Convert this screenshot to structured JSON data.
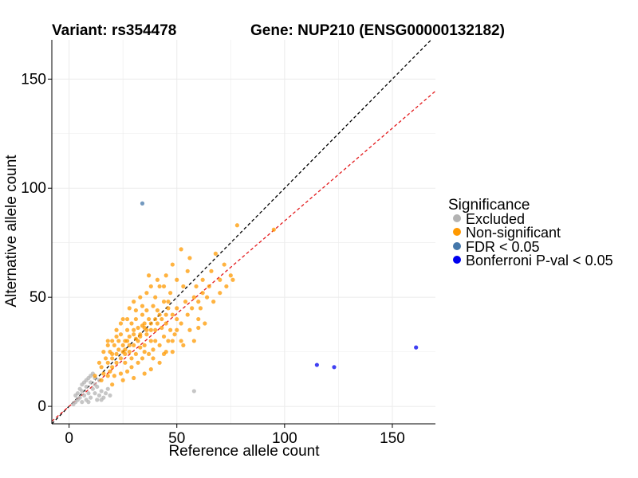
{
  "chart_data": {
    "type": "scatter",
    "title_left": "Variant: rs354478",
    "title_right": "Gene: NUP210 (ENSG00000132182)",
    "xlabel": "Reference allele count",
    "ylabel": "Alternative allele count",
    "xlim": [
      -8,
      170
    ],
    "ylim": [
      -8,
      168
    ],
    "xticks": [
      0,
      50,
      100,
      150
    ],
    "yticks": [
      0,
      50,
      100,
      150
    ],
    "grid": true,
    "reference_lines": [
      {
        "name": "identity",
        "slope": 1,
        "intercept": 0,
        "color": "#000000",
        "style": "dashed"
      },
      {
        "name": "fit",
        "slope": 0.85,
        "intercept": 0,
        "color": "#e31a1c",
        "style": "dashed"
      }
    ],
    "legend": {
      "title": "Significance",
      "position": "right",
      "entries": [
        {
          "label": "Excluded",
          "color": "#b3b3b3"
        },
        {
          "label": "Non-significant",
          "color": "#ff9900"
        },
        {
          "label": "FDR < 0.05",
          "color": "#4477aa"
        },
        {
          "label": "Bonferroni P-val < 0.05",
          "color": "#0000ee"
        }
      ]
    },
    "series": [
      {
        "name": "Excluded",
        "color": "#b3b3b3",
        "points": [
          [
            2,
            1
          ],
          [
            3,
            2
          ],
          [
            4,
            3
          ],
          [
            3,
            5
          ],
          [
            5,
            4
          ],
          [
            6,
            2
          ],
          [
            6,
            7
          ],
          [
            7,
            5
          ],
          [
            8,
            3
          ],
          [
            8,
            9
          ],
          [
            9,
            6
          ],
          [
            10,
            4
          ],
          [
            10,
            11
          ],
          [
            11,
            8
          ],
          [
            12,
            6
          ],
          [
            12,
            13
          ],
          [
            13,
            9
          ],
          [
            14,
            5
          ],
          [
            14,
            12
          ],
          [
            15,
            7
          ],
          [
            5,
            8
          ],
          [
            7,
            11
          ],
          [
            9,
            13
          ],
          [
            11,
            15
          ],
          [
            13,
            3
          ],
          [
            16,
            4
          ],
          [
            17,
            6
          ],
          [
            18,
            8
          ],
          [
            4,
            6
          ],
          [
            6,
            10
          ],
          [
            8,
            12
          ],
          [
            10,
            14
          ],
          [
            12,
            10
          ],
          [
            9,
            2
          ],
          [
            15,
            3
          ],
          [
            19,
            5
          ],
          [
            58,
            7
          ]
        ]
      },
      {
        "name": "Non-significant",
        "color": "#ff9900",
        "points": [
          [
            95,
            81
          ],
          [
            78,
            83
          ],
          [
            72,
            65
          ],
          [
            70,
            58
          ],
          [
            75,
            60
          ],
          [
            68,
            70
          ],
          [
            65,
            55
          ],
          [
            66,
            62
          ],
          [
            60,
            48
          ],
          [
            62,
            52
          ],
          [
            58,
            50
          ],
          [
            55,
            62
          ],
          [
            52,
            72
          ],
          [
            56,
            68
          ],
          [
            50,
            58
          ],
          [
            48,
            65
          ],
          [
            45,
            60
          ],
          [
            60,
            40
          ],
          [
            63,
            38
          ],
          [
            55,
            42
          ],
          [
            50,
            35
          ],
          [
            58,
            30
          ],
          [
            53,
            28
          ],
          [
            48,
            30
          ],
          [
            45,
            25
          ],
          [
            42,
            20
          ],
          [
            38,
            17
          ],
          [
            35,
            15
          ],
          [
            30,
            13
          ],
          [
            25,
            12
          ],
          [
            20,
            10
          ],
          [
            18,
            14
          ],
          [
            15,
            12
          ],
          [
            12,
            14
          ],
          [
            15,
            18
          ],
          [
            14,
            20
          ],
          [
            16,
            25
          ],
          [
            18,
            28
          ],
          [
            20,
            30
          ],
          [
            22,
            35
          ],
          [
            25,
            40
          ],
          [
            28,
            45
          ],
          [
            30,
            48
          ],
          [
            33,
            50
          ],
          [
            36,
            52
          ],
          [
            38,
            55
          ],
          [
            40,
            50
          ],
          [
            42,
            55
          ],
          [
            44,
            48
          ],
          [
            46,
            45
          ],
          [
            48,
            42
          ],
          [
            50,
            40
          ],
          [
            52,
            38
          ],
          [
            40,
            30
          ],
          [
            38,
            35
          ],
          [
            35,
            38
          ],
          [
            33,
            32
          ],
          [
            30,
            28
          ],
          [
            28,
            25
          ],
          [
            26,
            30
          ],
          [
            24,
            22
          ],
          [
            22,
            20
          ],
          [
            20,
            18
          ],
          [
            18,
            20
          ],
          [
            16,
            15
          ],
          [
            25,
            28
          ],
          [
            27,
            35
          ],
          [
            29,
            38
          ],
          [
            31,
            40
          ],
          [
            34,
            42
          ],
          [
            36,
            44
          ],
          [
            39,
            46
          ],
          [
            41,
            44
          ],
          [
            43,
            40
          ],
          [
            45,
            38
          ],
          [
            47,
            35
          ],
          [
            44,
            32
          ],
          [
            42,
            28
          ],
          [
            39,
            26
          ],
          [
            37,
            24
          ],
          [
            34,
            22
          ],
          [
            32,
            20
          ],
          [
            29,
            18
          ],
          [
            27,
            16
          ],
          [
            24,
            15
          ],
          [
            21,
            14
          ],
          [
            19,
            16
          ],
          [
            17,
            22
          ],
          [
            20,
            24
          ],
          [
            23,
            26
          ],
          [
            26,
            20
          ],
          [
            31,
            24
          ],
          [
            35,
            28
          ],
          [
            40,
            35
          ],
          [
            43,
            36
          ],
          [
            46,
            30
          ],
          [
            49,
            33
          ],
          [
            41,
            38
          ],
          [
            37,
            40
          ],
          [
            32,
            36
          ],
          [
            28,
            32
          ],
          [
            24,
            33
          ],
          [
            21,
            28
          ],
          [
            19,
            25
          ],
          [
            23,
            30
          ],
          [
            30,
            33
          ],
          [
            36,
            33
          ],
          [
            33,
            27
          ],
          [
            38,
            30
          ],
          [
            45,
            42
          ],
          [
            50,
            45
          ],
          [
            54,
            48
          ],
          [
            57,
            45
          ],
          [
            61,
            45
          ],
          [
            64,
            50
          ],
          [
            67,
            48
          ],
          [
            70,
            52
          ],
          [
            73,
            55
          ],
          [
            76,
            58
          ],
          [
            62,
            58
          ],
          [
            59,
            55
          ],
          [
            53,
            55
          ],
          [
            47,
            52
          ],
          [
            44,
            55
          ],
          [
            41,
            58
          ],
          [
            37,
            60
          ],
          [
            34,
            46
          ],
          [
            31,
            44
          ],
          [
            27,
            40
          ],
          [
            24,
            38
          ],
          [
            22,
            32
          ],
          [
            18,
            30
          ],
          [
            20,
            22
          ],
          [
            26,
            24
          ],
          [
            29,
            22
          ],
          [
            35,
            25
          ],
          [
            39,
            22
          ],
          [
            44,
            24
          ],
          [
            48,
            25
          ],
          [
            52,
            30
          ],
          [
            56,
            35
          ],
          [
            60,
            36
          ],
          [
            28,
            28
          ],
          [
            32,
            30
          ],
          [
            36,
            35
          ],
          [
            40,
            40
          ],
          [
            30,
            35
          ],
          [
            34,
            37
          ],
          [
            26,
            26
          ],
          [
            22,
            24
          ],
          [
            42,
            42
          ],
          [
            46,
            48
          ],
          [
            38,
            38
          ],
          [
            33,
            33
          ],
          [
            27,
            30
          ],
          [
            25,
            25
          ],
          [
            31,
            31
          ],
          [
            35,
            36
          ]
        ]
      },
      {
        "name": "FDR < 0.05",
        "color": "#4477aa",
        "points": [
          [
            34,
            93
          ]
        ]
      },
      {
        "name": "Bonferroni P-val < 0.05",
        "color": "#0000ee",
        "points": [
          [
            115,
            19
          ],
          [
            123,
            18
          ],
          [
            161,
            27
          ]
        ]
      }
    ]
  }
}
